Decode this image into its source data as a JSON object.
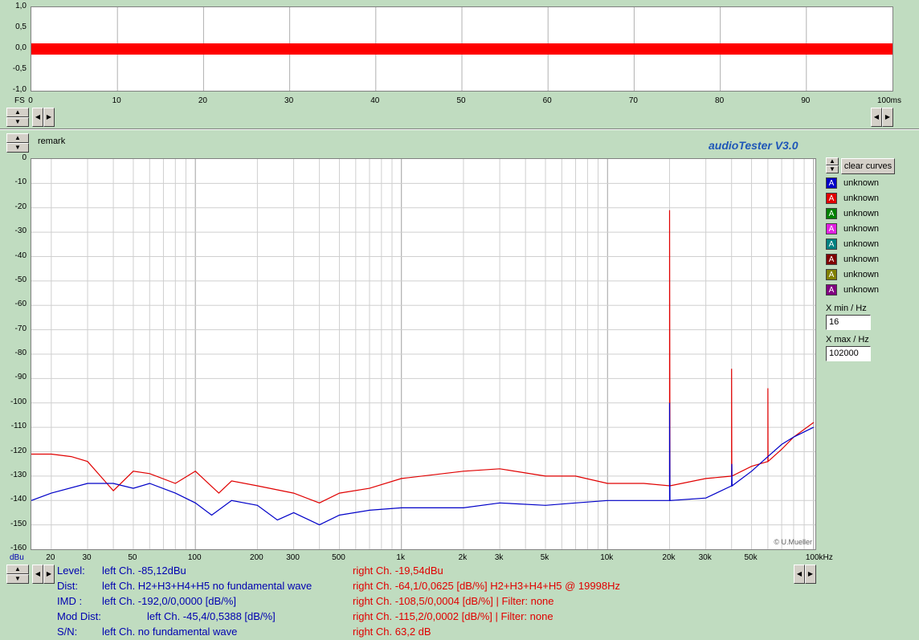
{
  "scope": {
    "y_ticks": [
      "1,0",
      "0,5",
      "0,0",
      "-0,5",
      "-1,0"
    ],
    "y_unit": "FS",
    "x_ticks": [
      "0",
      "10",
      "20",
      "30",
      "40",
      "50",
      "60",
      "70",
      "80",
      "90"
    ],
    "x_end_label": "100ms",
    "signal_color": "#ff0000"
  },
  "remark_label": "remark",
  "app_title": "audioTester  V3.0",
  "clear_curves_label": "clear curves",
  "legend": [
    {
      "label": "unknown",
      "color": "#0000c8"
    },
    {
      "label": "unknown",
      "color": "#e00000"
    },
    {
      "label": "unknown",
      "color": "#008000"
    },
    {
      "label": "unknown",
      "color": "#e020e0"
    },
    {
      "label": "unknown",
      "color": "#008080"
    },
    {
      "label": "unknown",
      "color": "#800000"
    },
    {
      "label": "unknown",
      "color": "#808000"
    },
    {
      "label": "unknown",
      "color": "#800080"
    }
  ],
  "legend_swatch_glyph": "A",
  "xmin_label": "X min / Hz",
  "xmin_value": "16",
  "xmax_label": "X max / Hz",
  "xmax_value": "102000",
  "watermark": "© U.Mueller",
  "spectrum": {
    "y_unit": "dBu",
    "y_ticks": [
      "0",
      "-10",
      "-20",
      "-30",
      "-40",
      "-50",
      "-60",
      "-70",
      "-80",
      "-90",
      "-100",
      "-110",
      "-120",
      "-130",
      "-140",
      "-150",
      "-160"
    ],
    "x_ticks": [
      "20",
      "30",
      "50",
      "100",
      "200",
      "300",
      "500",
      "1k",
      "2k",
      "3k",
      "5k",
      "10k",
      "20k",
      "30k",
      "50k",
      "100kHz"
    ]
  },
  "chart_data": {
    "type": "line",
    "xlabel": "",
    "ylabel": "dBu",
    "x_scale": "log",
    "xlim": [
      16,
      102000
    ],
    "ylim": [
      -160,
      0
    ],
    "grid": true,
    "series": [
      {
        "color": "#0000c8",
        "points": [
          [
            16,
            -140
          ],
          [
            20,
            -137
          ],
          [
            30,
            -133
          ],
          [
            40,
            -133
          ],
          [
            50,
            -135
          ],
          [
            60,
            -133
          ],
          [
            80,
            -137
          ],
          [
            100,
            -141
          ],
          [
            120,
            -146
          ],
          [
            150,
            -140
          ],
          [
            200,
            -142
          ],
          [
            250,
            -148
          ],
          [
            300,
            -145
          ],
          [
            400,
            -150
          ],
          [
            500,
            -146
          ],
          [
            700,
            -144
          ],
          [
            1000,
            -143
          ],
          [
            2000,
            -143
          ],
          [
            3000,
            -141
          ],
          [
            5000,
            -142
          ],
          [
            7000,
            -141
          ],
          [
            10000,
            -140
          ],
          [
            15000,
            -140
          ],
          [
            19998,
            -140
          ],
          [
            19998,
            -100
          ],
          [
            20100,
            -140
          ],
          [
            30000,
            -139
          ],
          [
            40000,
            -134
          ],
          [
            40100,
            -125
          ],
          [
            40200,
            -134
          ],
          [
            50000,
            -128
          ],
          [
            60000,
            -122
          ],
          [
            70000,
            -117
          ],
          [
            80000,
            -114
          ],
          [
            100000,
            -110
          ]
        ]
      },
      {
        "color": "#e00000",
        "points": [
          [
            16,
            -121
          ],
          [
            20,
            -121
          ],
          [
            25,
            -122
          ],
          [
            30,
            -124
          ],
          [
            40,
            -136
          ],
          [
            50,
            -128
          ],
          [
            60,
            -129
          ],
          [
            80,
            -133
          ],
          [
            100,
            -128
          ],
          [
            130,
            -137
          ],
          [
            150,
            -132
          ],
          [
            200,
            -134
          ],
          [
            300,
            -137
          ],
          [
            400,
            -141
          ],
          [
            500,
            -137
          ],
          [
            700,
            -135
          ],
          [
            1000,
            -131
          ],
          [
            2000,
            -128
          ],
          [
            3000,
            -127
          ],
          [
            5000,
            -130
          ],
          [
            7000,
            -130
          ],
          [
            10000,
            -133
          ],
          [
            15000,
            -133
          ],
          [
            19998,
            -134
          ],
          [
            19998,
            -21
          ],
          [
            20100,
            -134
          ],
          [
            30000,
            -131
          ],
          [
            39996,
            -130
          ],
          [
            39996,
            -86
          ],
          [
            40100,
            -130
          ],
          [
            50000,
            -126
          ],
          [
            59994,
            -124
          ],
          [
            59994,
            -94
          ],
          [
            60100,
            -124
          ],
          [
            70000,
            -119
          ],
          [
            80000,
            -114
          ],
          [
            100000,
            -108
          ]
        ]
      }
    ]
  },
  "info": {
    "level_label": "Level:",
    "level_left": "left Ch. -85,12dBu",
    "level_right": "right Ch. -19,54dBu",
    "dist_label": "Dist:",
    "dist_left": "left Ch. H2+H3+H4+H5 no fundamental wave",
    "dist_right": "right Ch. -64,1/0,0625 [dB/%] H2+H3+H4+H5 @ 19998Hz",
    "imd_label": "IMD  :",
    "imd_left": "left Ch. -192,0/0,0000 [dB/%]",
    "imd_right": "right Ch. -108,5/0,0004 [dB/%] |   Filter: none",
    "moddist_label": "Mod Dist:",
    "moddist_left": "left Ch. -45,4/0,5388 [dB/%]",
    "moddist_right": "right Ch. -115,2/0,0002 [dB/%] |   Filter: none",
    "sn_label": "S/N:",
    "sn_left": "left Ch.  no fundamental wave",
    "sn_right": "right Ch. 63,2 dB"
  }
}
